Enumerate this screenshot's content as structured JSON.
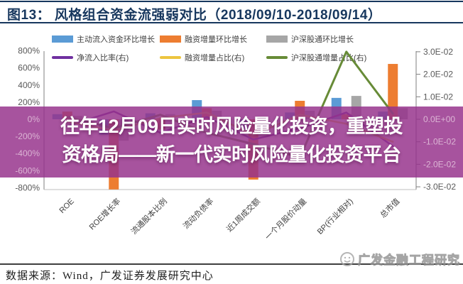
{
  "title": "图13：  风格组合资金流强弱对比（2018/09/10-2018/09/14）",
  "legend": {
    "rows": [
      [
        {
          "id": "active-inflow-growth",
          "label": "主动流入资金环比增长",
          "type": "bar",
          "color": "#5B9BD5"
        },
        {
          "id": "margin-increase-growth",
          "label": "融资增量环比增长",
          "type": "bar",
          "color": "#ED7D31"
        },
        {
          "id": "northbound-growth",
          "label": "沪深股通环比增长",
          "type": "bar",
          "color": "#A6A6A6"
        }
      ],
      [
        {
          "id": "net-inflow-ratio",
          "label": "净流入比率(右)",
          "type": "line",
          "color": "#7030A0"
        },
        {
          "id": "margin-share",
          "label": "融资增量占比(右)",
          "type": "line",
          "color": "#EDC53F"
        },
        {
          "id": "northbound-share",
          "label": "沪深股通增量占比(右)",
          "type": "line",
          "color": "#678B37"
        }
      ]
    ]
  },
  "axes": {
    "left_ticks": [
      "800%",
      "600%",
      "400%",
      "200%",
      "0%",
      "-200%",
      "-400%",
      "-600%",
      "-800%"
    ],
    "right_ticks": [
      "3.0E-02",
      "2.0E-02",
      "1.0E-02",
      "0.0E+00",
      "-1.0E-02",
      "-2.0E-02",
      "-3.0E-02"
    ]
  },
  "chart_data": {
    "type": "combo-bar-line",
    "categories": [
      "ROE",
      "ROE增长率",
      "流通股本比例",
      "流动负债率",
      "近1周成交额",
      "一个月股价动量",
      "BP(行业相对)",
      "总市值"
    ],
    "ylim_left_percent": [
      -800,
      800
    ],
    "ylim_right": [
      -0.03,
      0.03
    ],
    "grid": false,
    "legend_position": "top",
    "bar_series": [
      {
        "id": "active-inflow-growth",
        "name": "主动流入资金环比增长",
        "axis": "left",
        "unit": "%",
        "color": "#5B9BD5",
        "values": [
          60,
          -180,
          70,
          224,
          -130,
          80,
          250,
          90
        ]
      },
      {
        "id": "margin-increase-growth",
        "name": "融资增量环比增长",
        "axis": "left",
        "unit": "%",
        "color": "#ED7D31",
        "values": [
          90,
          -820,
          -120,
          130,
          -705,
          216,
          60,
          647
        ]
      },
      {
        "id": "northbound-growth",
        "name": "沪深股通环比增长",
        "axis": "left",
        "unit": "%",
        "color": "#A6A6A6",
        "values": [
          40,
          -250,
          60,
          100,
          -180,
          100,
          273,
          130
        ]
      }
    ],
    "line_series": [
      {
        "id": "net-inflow-ratio",
        "name": "净流入比率(右)",
        "axis": "right",
        "color": "#7030A0",
        "values": [
          -0.003,
          0.0035,
          -0.006,
          0.001,
          -0.009,
          -0.004,
          0.003,
          -0.012
        ]
      },
      {
        "id": "margin-share",
        "name": "融资增量占比(右)",
        "axis": "right",
        "color": "#EDC53F",
        "values": [
          -0.001,
          -0.005,
          0.0005,
          0.003,
          -0.007,
          0.002,
          -0.002,
          -0.01
        ]
      },
      {
        "id": "northbound-share",
        "name": "沪深股通增量占比(右)",
        "axis": "right",
        "color": "#678B37",
        "values": [
          0.001,
          -0.004,
          0.002,
          -0.006,
          -0.011,
          -0.017,
          0.03,
          0.0025
        ]
      }
    ]
  },
  "overlay": {
    "line1": "往年12月09日实时风险量化投资，重塑投",
    "line2": "资格局——新一代实时风险量化投资平台",
    "bg_rgba": "rgba(150,50,140,0.84)"
  },
  "footer": {
    "source": "数据来源：Wind，广发证券发展研究中心",
    "watermark": "广发金融工程研究"
  },
  "colors": {
    "title": "#17375E",
    "axis_line": "#7F7F7F",
    "tick_label": "#595959",
    "category_label": "#404040",
    "inband_tick_label": "#DFB8D8"
  }
}
